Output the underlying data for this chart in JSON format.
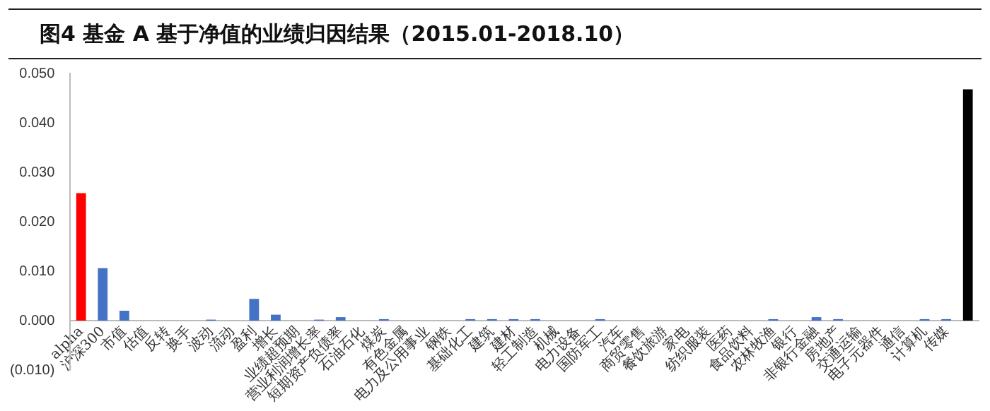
{
  "chart_data": {
    "type": "bar",
    "title": "图4  基金 A 基于净值的业绩归因结果（2015.01-2018.10）",
    "categories": [
      "alpha",
      "沪深300",
      "市值",
      "估值",
      "反转",
      "换手",
      "波动",
      "流动",
      "盈利",
      "增长",
      "业绩超预期",
      "营业利润增长率",
      "短期资产负债率",
      "石油石化",
      "煤炭",
      "有色金属",
      "电力及公用事业",
      "钢铁",
      "基础化工",
      "建筑",
      "建材",
      "轻工制造",
      "机械",
      "电力设备",
      "国防军工",
      "汽车",
      "商贸零售",
      "餐饮旅游",
      "家电",
      "纺织服装",
      "医药",
      "食品饮料",
      "农林牧渔",
      "银行",
      "非银行金融",
      "房地产",
      "交通运输",
      "电子元器件",
      "通信",
      "计算机",
      "传媒",
      null
    ],
    "values": [
      0.0258,
      0.0106,
      0.002,
      0,
      0,
      0,
      0.0002,
      0,
      0.0044,
      0.0012,
      0,
      0.0002,
      0.0007,
      0,
      0.0003,
      0,
      0,
      0,
      0.0003,
      0.0003,
      0.0003,
      0.0003,
      0,
      0,
      0.0003,
      0,
      0,
      0,
      0,
      0,
      0,
      0,
      0.0003,
      0,
      0.0007,
      0.0003,
      0,
      0,
      0,
      0.0003,
      0.0003,
      0.0468
    ],
    "colors": [
      "#ff0000",
      "#4472c4",
      "#4472c4",
      "#4472c4",
      "#4472c4",
      "#4472c4",
      "#4472c4",
      "#4472c4",
      "#4472c4",
      "#4472c4",
      "#4472c4",
      "#4472c4",
      "#4472c4",
      "#4472c4",
      "#4472c4",
      "#4472c4",
      "#4472c4",
      "#4472c4",
      "#4472c4",
      "#4472c4",
      "#4472c4",
      "#4472c4",
      "#4472c4",
      "#4472c4",
      "#4472c4",
      "#4472c4",
      "#4472c4",
      "#4472c4",
      "#4472c4",
      "#4472c4",
      "#4472c4",
      "#4472c4",
      "#4472c4",
      "#4472c4",
      "#4472c4",
      "#4472c4",
      "#4472c4",
      "#4472c4",
      "#4472c4",
      "#4472c4",
      "#4472c4",
      "#000000"
    ],
    "ylim": [
      -0.01,
      0.05
    ],
    "yticks": [
      {
        "value": -0.01,
        "label": "(0.010)"
      },
      {
        "value": 0,
        "label": "0.000"
      },
      {
        "value": 0.01,
        "label": "0.010"
      },
      {
        "value": 0.02,
        "label": "0.020"
      },
      {
        "value": 0.03,
        "label": "0.030"
      },
      {
        "value": 0.04,
        "label": "0.040"
      },
      {
        "value": 0.05,
        "label": "0.050"
      }
    ],
    "grid": false,
    "legend": false
  }
}
